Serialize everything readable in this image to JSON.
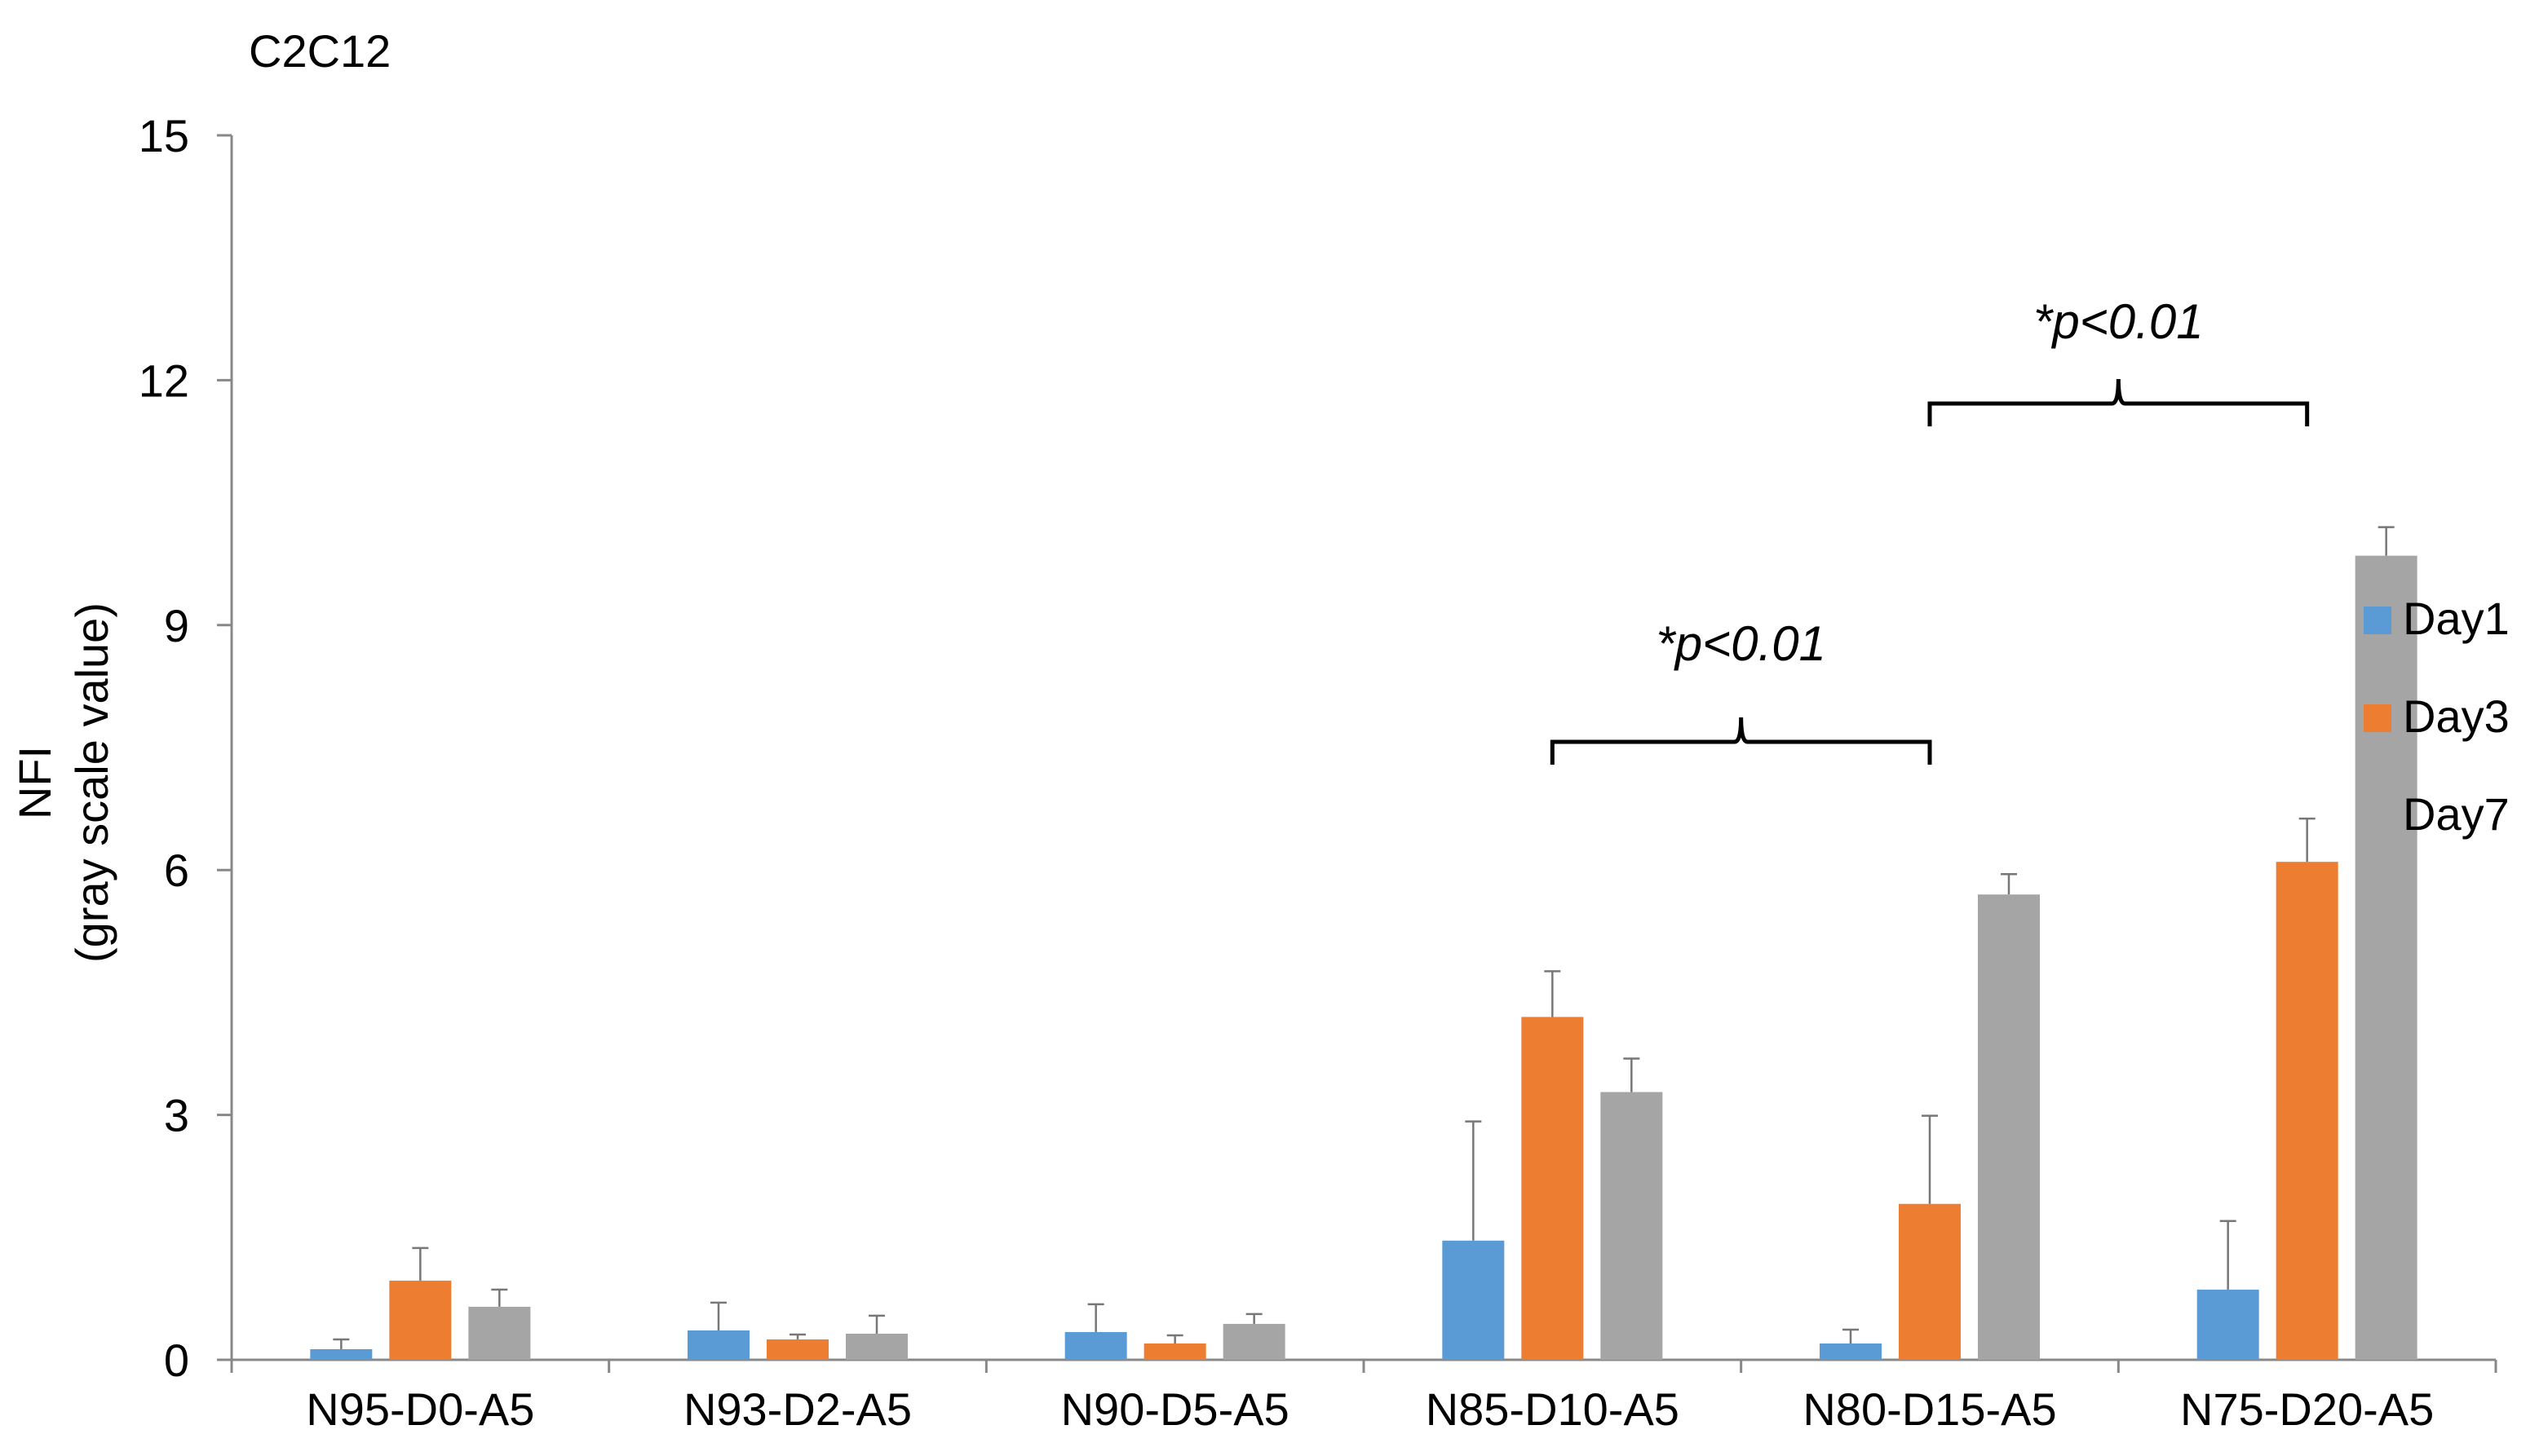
{
  "chart_data": {
    "type": "bar",
    "title": "C2C12",
    "xlabel": "",
    "ylabel": "NFI",
    "ylabel_sub": "(gray scale value)",
    "ylim": [
      0,
      15
    ],
    "yticks": [
      0,
      3,
      6,
      9,
      12,
      15
    ],
    "categories": [
      "N95-D0-A5",
      "N93-D2-A5",
      "N90-D5-A5",
      "N85-D10-A5",
      "N80-D15-A5",
      "N75-D20-A5"
    ],
    "series": [
      {
        "name": "Day1",
        "color": "#5B9BD5",
        "values": [
          0.13,
          0.36,
          0.34,
          1.46,
          0.2,
          0.86
        ],
        "errors": [
          0.12,
          0.34,
          0.34,
          1.46,
          0.17,
          0.84
        ]
      },
      {
        "name": "Day3",
        "color": "#ED7D31",
        "values": [
          0.97,
          0.25,
          0.2,
          4.2,
          1.91,
          6.1
        ],
        "errors": [
          0.4,
          0.06,
          0.1,
          0.56,
          1.08,
          0.53
        ]
      },
      {
        "name": "Day7",
        "color": "#A5A5A5",
        "values": [
          0.65,
          0.32,
          0.44,
          3.28,
          5.7,
          9.85
        ],
        "errors": [
          0.21,
          0.22,
          0.12,
          0.41,
          0.25,
          0.35
        ]
      }
    ],
    "legend_position": "right",
    "grid": false,
    "annotations": [
      {
        "text": "*p<0.01",
        "from_category": 3,
        "to_category": 4
      },
      {
        "text": "*p<0.01",
        "from_category": 4,
        "to_category": 5
      }
    ]
  }
}
